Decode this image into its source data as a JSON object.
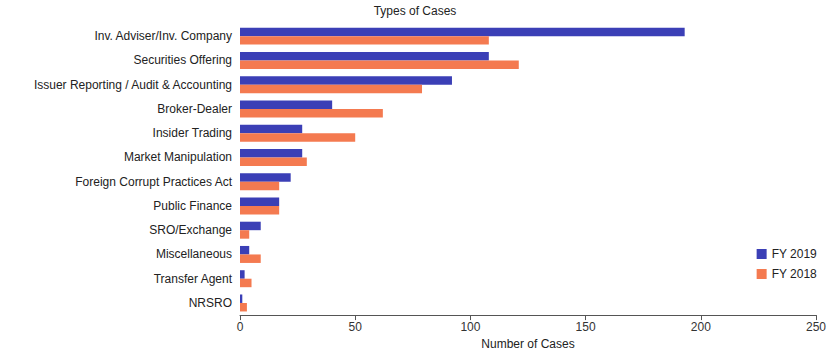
{
  "chart_data": {
    "type": "bar",
    "title": "Types of Cases",
    "x_label": "Number of Cases",
    "orientation": "horizontal",
    "categories": [
      "Inv. Adviser/Inv. Company",
      "Securities Offering",
      "Issuer Reporting / Audit & Accounting",
      "Broker-Dealer",
      "Insider Trading",
      "Market Manipulation",
      "Foreign Corrupt Practices Act",
      "Public Finance",
      "SRO/Exchange",
      "Miscellaneous",
      "Transfer Agent",
      "NRSRO"
    ],
    "series": [
      {
        "name": "FY 2019",
        "color": "#3b3fb6",
        "values": [
          193,
          108,
          92,
          40,
          27,
          27,
          22,
          17,
          9,
          4,
          2,
          1
        ]
      },
      {
        "name": "FY 2018",
        "color": "#f47a50",
        "values": [
          108,
          121,
          79,
          62,
          50,
          29,
          17,
          17,
          4,
          9,
          5,
          3
        ]
      }
    ],
    "xlim": [
      0,
      250
    ],
    "xticks": [
      0,
      50,
      100,
      150,
      200,
      250
    ],
    "grid": false,
    "legend": "lower right"
  }
}
